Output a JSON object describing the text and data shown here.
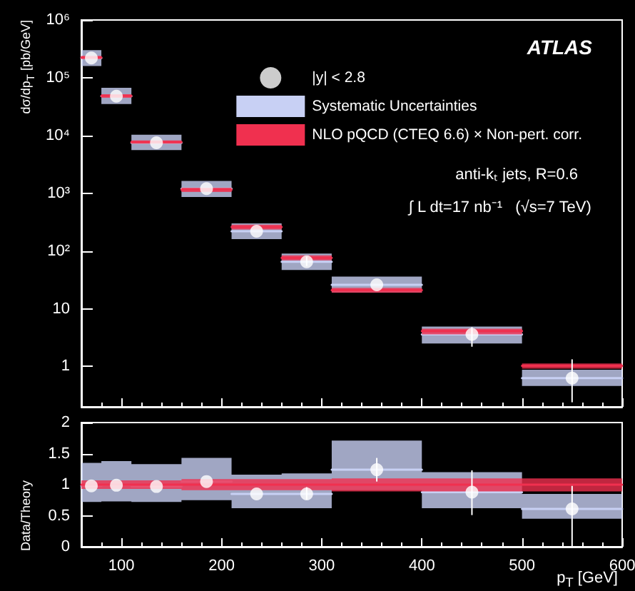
{
  "chart_data": [
    {
      "type": "scatter",
      "ylabel": "dσ/dp$_{T}$ [pb/GeV]",
      "log": "y",
      "xlim": [
        60,
        600
      ],
      "ylim": [
        0.2,
        1000000
      ],
      "yticks": [
        1,
        10,
        {
          "value": 100,
          "label": "10²"
        },
        {
          "value": 1000,
          "label": "10³"
        },
        {
          "value": 10000,
          "label": "10⁴"
        },
        {
          "value": 100000,
          "label": "10⁵"
        },
        {
          "value": 1000000,
          "label": "10⁶"
        }
      ],
      "tick_labels": "y",
      "grid": false,
      "legend": "top right",
      "annotations": [
        "ATLAS",
        "anti-kₜ jets, R=0.6",
        "∫ L dt=17 nb⁻¹   (√s=7 TeV)"
      ],
      "series": [
        {
          "name": "Systematic Uncertainties",
          "type": "line",
          "marker": "none",
          "color": "#c8d0f4",
          "x": [
            60,
            80,
            80,
            110,
            110,
            160,
            160,
            210,
            210,
            260,
            260,
            310,
            310,
            400,
            400,
            500,
            500,
            600
          ],
          "values": [
            220000,
            220000,
            48000,
            48000,
            7500,
            7500,
            1200,
            1200,
            220,
            220,
            65,
            65,
            26,
            26,
            3.6,
            3.6,
            0.63,
            0.63
          ],
          "lower": [
            160000,
            160000,
            35000,
            35000,
            5600,
            5600,
            860,
            860,
            160,
            160,
            47,
            47,
            19,
            19,
            2.5,
            2.5,
            0.46,
            0.46
          ],
          "upper": [
            300000,
            300000,
            67000,
            67000,
            10300,
            10300,
            1630,
            1630,
            300,
            300,
            90,
            90,
            36,
            36,
            4.9,
            4.9,
            0.88,
            0.88
          ]
        },
        {
          "name": "NLO pQCD (CTEQ 6.6) × Non-pert. corr.",
          "type": "line",
          "marker": "none",
          "color": "#f0304f",
          "x": [
            60,
            80,
            80,
            110,
            110,
            160,
            160,
            210,
            210,
            260,
            260,
            310,
            310,
            400,
            400,
            500,
            500,
            600
          ],
          "values": [
            225000,
            225000,
            48500,
            48500,
            7700,
            7700,
            1150,
            1150,
            260,
            260,
            76,
            76,
            21,
            21,
            4.1,
            4.1,
            1.03,
            1.03
          ],
          "lower": [
            210000,
            210000,
            45000,
            45000,
            7200,
            7200,
            1050,
            1050,
            235,
            235,
            69,
            69,
            19,
            19,
            3.6,
            3.6,
            0.92,
            0.92
          ],
          "upper": [
            240000,
            240000,
            52000,
            52000,
            8200,
            8200,
            1250,
            1250,
            285,
            285,
            84,
            84,
            23,
            23,
            4.5,
            4.5,
            1.13,
            1.13
          ]
        },
        {
          "name": "|y| < 2.8",
          "marker": "circle",
          "color": "#ffffff",
          "x": [
            70,
            95,
            135,
            185,
            235,
            285,
            355,
            450,
            550
          ],
          "values": [
            220000,
            48000,
            7500,
            1200,
            220,
            65,
            26,
            3.6,
            0.63
          ],
          "errors": [
            null,
            null,
            null,
            null,
            null,
            [
              55,
              80
            ],
            null,
            [
              2.2,
              4.8
            ],
            [
              0.24,
              1.33
            ]
          ]
        }
      ]
    },
    {
      "type": "scatter",
      "xlabel": "p$_{T}$ [GeV]",
      "ylabel": "Data/Theory",
      "xlim": [
        60,
        600
      ],
      "xticks": [
        100,
        200,
        300,
        400,
        500,
        600
      ],
      "ylim": [
        0,
        2
      ],
      "yticks": [
        0,
        0.5,
        1,
        1.5,
        2
      ],
      "grid": false,
      "legend": false,
      "series": [
        {
          "type": "line",
          "marker": "none",
          "color": "#c8d0f4",
          "x": [
            60,
            80,
            80,
            110,
            110,
            160,
            160,
            210,
            210,
            260,
            260,
            310,
            310,
            400,
            400,
            500,
            500,
            600
          ],
          "values": [
            0.98,
            0.98,
            0.99,
            0.99,
            0.97,
            0.97,
            1.05,
            1.05,
            0.85,
            0.85,
            0.85,
            0.85,
            1.24,
            1.24,
            0.88,
            0.88,
            0.61,
            0.61
          ],
          "lower": [
            0.72,
            0.72,
            0.73,
            0.73,
            0.72,
            0.72,
            0.75,
            0.75,
            0.62,
            0.62,
            0.62,
            0.62,
            0.91,
            0.91,
            0.62,
            0.62,
            0.45,
            0.45
          ],
          "upper": [
            1.35,
            1.35,
            1.38,
            1.38,
            1.33,
            1.33,
            1.43,
            1.43,
            1.16,
            1.16,
            1.18,
            1.18,
            1.71,
            1.71,
            1.2,
            1.2,
            0.85,
            0.85
          ]
        },
        {
          "type": "line",
          "marker": "none",
          "color": "#f0304f",
          "x": [
            60,
            80,
            80,
            110,
            110,
            160,
            160,
            210,
            210,
            260,
            260,
            310,
            310,
            400,
            400,
            500,
            500,
            600
          ],
          "values": [
            1,
            1,
            1,
            1,
            1,
            1,
            1,
            1,
            1,
            1,
            1,
            1,
            1,
            1,
            1,
            1,
            1,
            1
          ],
          "lower": [
            0.93,
            0.93,
            0.93,
            0.93,
            0.93,
            0.93,
            0.91,
            0.91,
            0.91,
            0.91,
            0.91,
            0.91,
            0.89,
            0.89,
            0.89,
            0.89,
            0.89,
            0.89
          ],
          "upper": [
            1.07,
            1.07,
            1.07,
            1.07,
            1.07,
            1.07,
            1.09,
            1.09,
            1.09,
            1.09,
            1.09,
            1.09,
            1.1,
            1.1,
            1.1,
            1.1,
            1.1,
            1.1
          ]
        },
        {
          "marker": "circle",
          "color": "#ffffff",
          "x": [
            70,
            95,
            135,
            185,
            235,
            285,
            355,
            450,
            550
          ],
          "values": [
            0.98,
            0.99,
            0.97,
            1.05,
            0.85,
            0.85,
            1.24,
            0.88,
            0.61
          ],
          "errors": [
            null,
            null,
            null,
            null,
            null,
            [
              0.76,
              0.96
            ],
            [
              1.05,
              1.43
            ],
            [
              0.51,
              1.23
            ],
            [
              0,
              0.98
            ]
          ]
        }
      ]
    }
  ]
}
